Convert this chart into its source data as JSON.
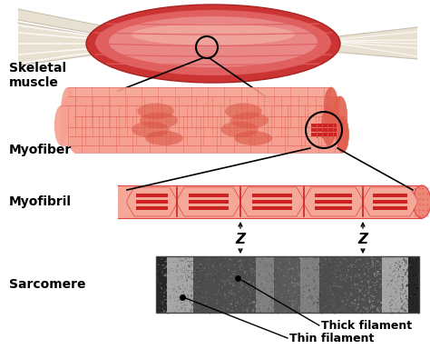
{
  "bg_color": "#ffffff",
  "muscle_color_main": "#cc3333",
  "muscle_color_mid": "#e06060",
  "muscle_color_light": "#f0a0a0",
  "muscle_color_highlight": "#f5c0b0",
  "tendon_color": "#e8e0d0",
  "tendon_shadow": "#c8c0b0",
  "myofiber_outer": "#f5a090",
  "myofiber_stripe": "#e06050",
  "myofiber_nucleus": "#d85040",
  "myofibril_outer": "#f5a898",
  "myofibril_mid": "#ee8878",
  "myofibril_inner": "#cc2222",
  "myofibril_line": "#dd4444",
  "sarcomere_bg": "#999999",
  "label_skeletal": "Skeletal\nmuscle",
  "label_myofiber": "Myofiber",
  "label_myofibril": "Myofibril",
  "label_sarcomere": "Sarcomere",
  "label_thick": "Thick filament",
  "label_thin": "Thin filament",
  "label_z": "Z",
  "label_fontsize": 10,
  "label_fontweight": "bold"
}
